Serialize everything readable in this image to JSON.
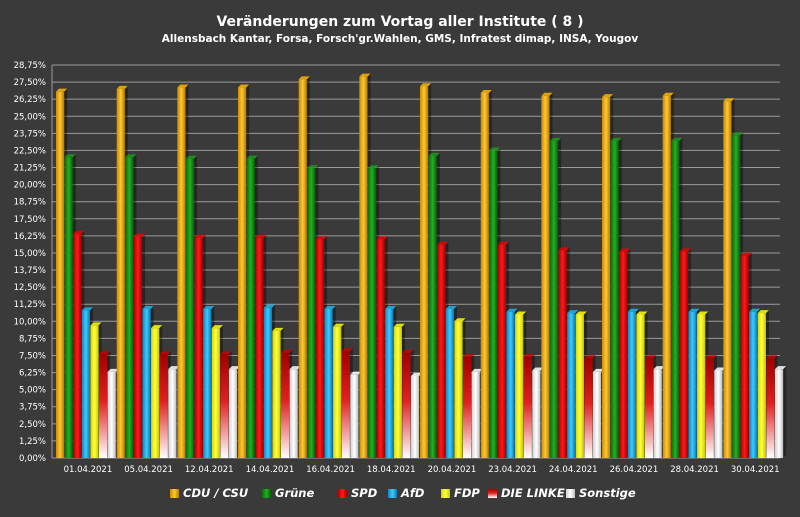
{
  "chart_data": {
    "type": "bar",
    "title": "Veränderungen zum Vortag aller Institute ( 8 )",
    "subtitle": "Allensbach Kantar, Forsa, Forsch'gr.Wahlen, GMS, Infratest dimap, INSA, Yougov",
    "ylim": [
      0,
      28.75
    ],
    "y_ticks": [
      "0,00%",
      "1,25%",
      "2,50%",
      "3,75%",
      "5,00%",
      "6,25%",
      "7,50%",
      "8,75%",
      "10,00%",
      "11,25%",
      "12,50%",
      "13,75%",
      "15,00%",
      "16,25%",
      "17,50%",
      "18,75%",
      "20,00%",
      "21,25%",
      "22,50%",
      "23,75%",
      "25,00%",
      "26,25%",
      "27,50%",
      "28,75%"
    ],
    "grid": true,
    "legend_position": "bottom",
    "categories": [
      "01.04.2021",
      "05.04.2021",
      "12.04.2021",
      "14.04.2021",
      "16.04.2021",
      "18.04.2021",
      "20.04.2021",
      "23.04.2021",
      "24.04.2021",
      "26.04.2021",
      "28.04.2021",
      "30.04.2021"
    ],
    "series": [
      {
        "name": "CDU / CSU",
        "color": "#ffb400",
        "values": [
          26.8,
          27.0,
          27.1,
          27.1,
          27.7,
          27.9,
          27.2,
          26.7,
          26.5,
          26.4,
          26.5,
          26.1
        ]
      },
      {
        "name": "Grüne",
        "color": "#1a9a1a",
        "values": [
          22.0,
          22.0,
          21.9,
          21.9,
          21.2,
          21.2,
          22.1,
          22.5,
          23.2,
          23.2,
          23.2,
          23.6
        ]
      },
      {
        "name": "SPD",
        "color": "#ee0000",
        "values": [
          16.4,
          16.2,
          16.1,
          16.1,
          16.0,
          16.0,
          15.6,
          15.6,
          15.2,
          15.1,
          15.1,
          14.8
        ]
      },
      {
        "name": "AfD",
        "color": "#1ab4f0",
        "values": [
          10.8,
          10.9,
          10.9,
          11.0,
          10.9,
          10.9,
          10.9,
          10.7,
          10.6,
          10.7,
          10.7,
          10.7
        ]
      },
      {
        "name": "FDP",
        "color": "#ffff00",
        "values": [
          9.7,
          9.5,
          9.5,
          9.3,
          9.6,
          9.6,
          10.0,
          10.5,
          10.5,
          10.5,
          10.5,
          10.6
        ]
      },
      {
        "name": "DIE LINKE",
        "color": "#cc0000",
        "values": [
          7.6,
          7.6,
          7.6,
          7.7,
          7.8,
          7.7,
          7.4,
          7.4,
          7.3,
          7.3,
          7.3,
          7.3
        ]
      },
      {
        "name": "Sonstige",
        "color": "#ffffff",
        "values": [
          6.3,
          6.5,
          6.5,
          6.5,
          6.1,
          6.0,
          6.3,
          6.4,
          6.3,
          6.5,
          6.4,
          6.5
        ]
      }
    ]
  }
}
